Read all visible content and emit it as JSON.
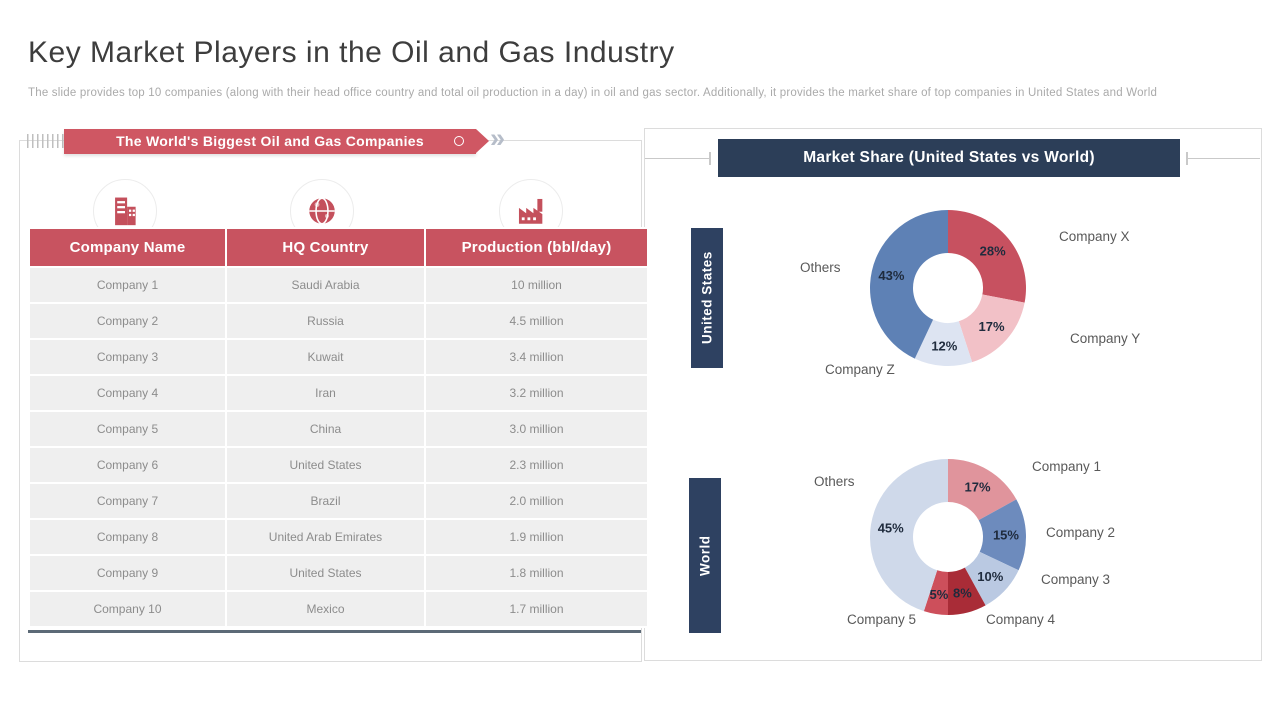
{
  "slide": {
    "title": "Key Market Players in the Oil and Gas Industry",
    "subtitle": "The slide provides top 10 companies (along with their head office country and total oil production in a day) in oil and gas sector. Additionally, it provides the market share of top companies in United States and World"
  },
  "left_panel": {
    "banner": "The World's Biggest Oil and Gas Companies",
    "column_icons": [
      "building-icon",
      "globe-icon",
      "factory-icon"
    ],
    "table": {
      "headers": [
        "Company Name",
        "HQ Country",
        "Production (bbl/day)"
      ],
      "rows": [
        [
          "Company 1",
          "Saudi Arabia",
          "10 million"
        ],
        [
          "Company 2",
          "Russia",
          "4.5 million"
        ],
        [
          "Company 3",
          "Kuwait",
          "3.4 million"
        ],
        [
          "Company 4",
          "Iran",
          "3.2 million"
        ],
        [
          "Company 5",
          "China",
          "3.0 million"
        ],
        [
          "Company 6",
          "United States",
          "2.3 million"
        ],
        [
          "Company 7",
          "Brazil",
          "2.0 million"
        ],
        [
          "Company 8",
          "United Arab Emirates",
          "1.9 million"
        ],
        [
          "Company 9",
          "United States",
          "1.8 million"
        ],
        [
          "Company 10",
          "Mexico",
          "1.7 million"
        ]
      ]
    }
  },
  "right_panel": {
    "title": "Market Share (United States vs World)"
  },
  "chart_data": [
    {
      "type": "pie",
      "variant": "donut",
      "group_label": "United States",
      "title": "Market Share (United States vs World)",
      "legend_position": "around-slices",
      "center_xy": [
        948,
        288
      ],
      "outer_radius": 78,
      "inner_radius": 35,
      "start_angle_deg": 0,
      "direction": "clockwise",
      "slices": [
        {
          "name": "Company X",
          "value": 28,
          "color": "#c75160",
          "label_xy": [
            1059,
            229
          ]
        },
        {
          "name": "Company Y",
          "value": 17,
          "color": "#f2c1c7",
          "label_xy": [
            1070,
            331
          ]
        },
        {
          "name": "Company Z",
          "value": 12,
          "color": "#dde4f2",
          "label_xy": [
            825,
            362
          ]
        },
        {
          "name": "Others",
          "value": 43,
          "color": "#5e81b5",
          "label_xy": [
            800,
            260
          ]
        }
      ]
    },
    {
      "type": "pie",
      "variant": "donut",
      "group_label": "World",
      "title": "Market Share (United States vs World)",
      "legend_position": "around-slices",
      "center_xy": [
        948,
        537
      ],
      "outer_radius": 78,
      "inner_radius": 35,
      "start_angle_deg": 0,
      "direction": "clockwise",
      "slices": [
        {
          "name": "Company 1",
          "value": 17,
          "color": "#e0949c",
          "label_xy": [
            1032,
            459
          ]
        },
        {
          "name": "Company 2",
          "value": 15,
          "color": "#6d8bbd",
          "label_xy": [
            1046,
            525
          ]
        },
        {
          "name": "Company 3",
          "value": 10,
          "color": "#bac9e2",
          "label_xy": [
            1041,
            572
          ]
        },
        {
          "name": "Company 4",
          "value": 8,
          "color": "#a92c37",
          "label_xy": [
            986,
            612
          ]
        },
        {
          "name": "Company 5",
          "value": 5,
          "color": "#cd4f5b",
          "label_xy": [
            847,
            612
          ]
        },
        {
          "name": "Others",
          "value": 45,
          "color": "#cfd9ea",
          "label_xy": [
            814,
            474
          ]
        }
      ]
    }
  ],
  "colors": {
    "accent_red": "#c85360",
    "ribbon_red": "#cf5763",
    "navy": "#2e4161",
    "row_bg": "#efefef",
    "percent_label": "#1f2b3d",
    "table_underline": "#5c6a77"
  }
}
